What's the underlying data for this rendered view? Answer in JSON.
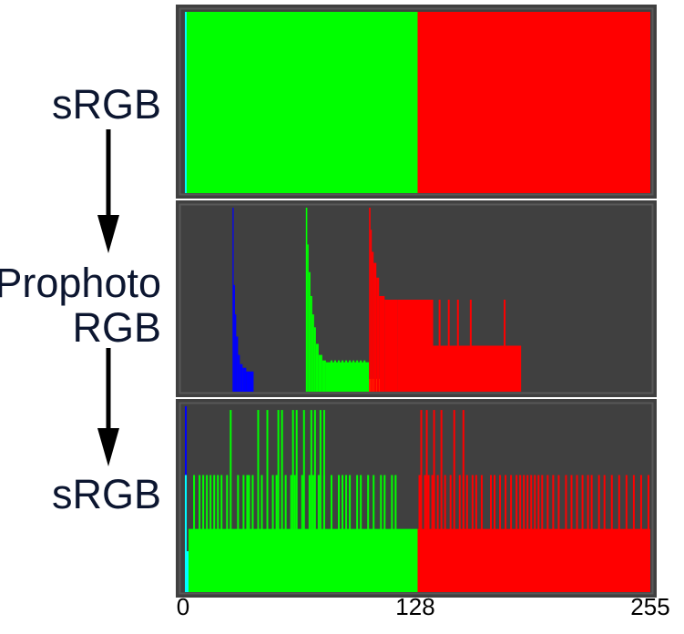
{
  "labels": {
    "top": "sRGB",
    "middle_line1": "Prophoto",
    "middle_line2": "RGB",
    "bottom": "sRGB"
  },
  "colors": {
    "panel_bg": "#404040",
    "panel_border": "#585858",
    "divider": "#ffffff",
    "red": "#ff0000",
    "green": "#00ff00",
    "blue": "#0000ff",
    "cyan": "#00ffff",
    "yellow": "#ffff00",
    "arrow": "#000000",
    "label": "#0c1630"
  },
  "chart_data": [
    {
      "type": "bar",
      "name": "histogram-srgb-original",
      "xlim": [
        0,
        255
      ],
      "xticks": [
        "0",
        "128",
        "255"
      ],
      "ymax": 100,
      "bands": [
        {
          "channel": "cyan",
          "x0": 1,
          "x1": 2,
          "y": 100
        },
        {
          "channel": "green",
          "x0": 2,
          "x1": 128,
          "y": 100
        },
        {
          "channel": "red",
          "x0": 128,
          "x1": 255,
          "y": 100
        }
      ]
    },
    {
      "type": "bar",
      "name": "histogram-prophoto-rgb",
      "xlim": [
        0,
        255
      ],
      "ymax": 100,
      "bands": [
        {
          "channel": "blue",
          "x0": 27,
          "x1": 27.6,
          "y": 100
        },
        {
          "channel": "blue",
          "x0": 27.6,
          "x1": 28.3,
          "y": 58
        },
        {
          "channel": "blue",
          "x0": 28.3,
          "x1": 29,
          "y": 42
        },
        {
          "channel": "blue",
          "x0": 29,
          "x1": 30,
          "y": 30
        },
        {
          "channel": "blue",
          "x0": 30,
          "x1": 31,
          "y": 20
        },
        {
          "channel": "blue",
          "x0": 31,
          "x1": 32.5,
          "y": 15
        },
        {
          "channel": "blue",
          "x0": 32.5,
          "x1": 34.5,
          "y": 13
        },
        {
          "channel": "blue",
          "x0": 34.5,
          "x1": 38.5,
          "y": 11
        },
        {
          "channel": "green",
          "x0": 67,
          "x1": 67.8,
          "y": 100
        },
        {
          "channel": "green",
          "x0": 67.8,
          "x1": 68.5,
          "y": 80
        },
        {
          "channel": "green",
          "x0": 68.5,
          "x1": 69.5,
          "y": 65
        },
        {
          "channel": "green",
          "x0": 69.5,
          "x1": 70.5,
          "y": 52
        },
        {
          "channel": "green",
          "x0": 70.5,
          "x1": 71.5,
          "y": 42
        },
        {
          "channel": "green",
          "x0": 71.5,
          "x1": 72.5,
          "y": 35
        },
        {
          "channel": "green",
          "x0": 72.5,
          "x1": 74,
          "y": 26
        },
        {
          "channel": "green",
          "x0": 74,
          "x1": 76,
          "y": 20
        },
        {
          "channel": "green",
          "x0": 76,
          "x1": 78,
          "y": 17
        },
        {
          "channel": "green",
          "x0": 78,
          "x1": 101.5,
          "y": 16
        },
        {
          "channel": "green",
          "x0": 101.5,
          "x1": 108,
          "y": 7
        },
        {
          "channel": "yellow",
          "x0": 101.5,
          "x1": 108,
          "y": 7
        },
        {
          "channel": "red",
          "x0": 101.5,
          "x1": 102.3,
          "y": 100
        },
        {
          "channel": "red",
          "x0": 102.3,
          "x1": 103,
          "y": 88
        },
        {
          "channel": "red",
          "x0": 103,
          "x1": 104,
          "y": 76
        },
        {
          "channel": "red",
          "x0": 104,
          "x1": 105.5,
          "y": 70
        },
        {
          "channel": "red",
          "x0": 105.5,
          "x1": 107,
          "y": 62
        },
        {
          "channel": "red",
          "x0": 107,
          "x1": 110,
          "y": 52
        },
        {
          "channel": "red",
          "x0": 110,
          "x1": 117,
          "y": 50
        },
        {
          "channel": "red",
          "x0": 117,
          "x1": 184.5,
          "y": 25
        },
        {
          "channel": "red",
          "x0": 117,
          "x1": 136.5,
          "y": 50
        }
      ],
      "spikes": [
        {
          "channel": "green",
          "x": [
            81,
            83,
            85,
            87,
            89,
            91,
            93,
            95,
            97,
            99
          ],
          "y": 17
        },
        {
          "channel": "red",
          "x": [
            121,
            123,
            125,
            127,
            129,
            131,
            133,
            135
          ],
          "y": 50
        },
        {
          "channel": "red",
          "x": [
            140,
            145,
            150,
            157
          ],
          "y": 50
        },
        {
          "channel": "red",
          "x": [
            175.5
          ],
          "y": 50
        }
      ]
    },
    {
      "type": "bar",
      "name": "histogram-srgb-roundtrip",
      "xlim": [
        0,
        255
      ],
      "ymax": 100,
      "bands": [
        {
          "channel": "blue",
          "x0": 1,
          "x1": 2,
          "y": 100
        },
        {
          "channel": "cyan",
          "x0": 1,
          "x1": 3,
          "y": 22
        },
        {
          "channel": "green",
          "x0": 3,
          "x1": 128,
          "y": 34
        },
        {
          "channel": "red",
          "x0": 128,
          "x1": 255,
          "y": 34
        }
      ],
      "spikes": [
        {
          "channel": "cyan",
          "x": [
            1.5
          ],
          "y": 63
        },
        {
          "channel": "green",
          "x": [
            6,
            9,
            11,
            13,
            15,
            17,
            19,
            21,
            24,
            30,
            33,
            35,
            36,
            38,
            43,
            49,
            51,
            56,
            59,
            61,
            65,
            69,
            71,
            74,
            77,
            81,
            85,
            87,
            89,
            91,
            95,
            97,
            101,
            104,
            108,
            110,
            114,
            116
          ],
          "y": 63
        },
        {
          "channel": "green",
          "x": [
            26,
            41,
            46,
            52,
            54,
            60,
            62,
            66,
            70,
            72,
            75,
            77
          ],
          "y": 98
        },
        {
          "channel": "red",
          "x": [
            129,
            132,
            134,
            136,
            139,
            143,
            146,
            151,
            153,
            155,
            158,
            160,
            163,
            168,
            170,
            173,
            176,
            179,
            182,
            184,
            186,
            188,
            190,
            192,
            194,
            196,
            199,
            202,
            205,
            209,
            212,
            215,
            218,
            221,
            223,
            227,
            230,
            234,
            238,
            242,
            246,
            250,
            254
          ],
          "y": 63
        },
        {
          "channel": "red",
          "x": [
            130,
            133,
            137,
            141,
            148,
            153
          ],
          "y": 98
        }
      ]
    }
  ]
}
